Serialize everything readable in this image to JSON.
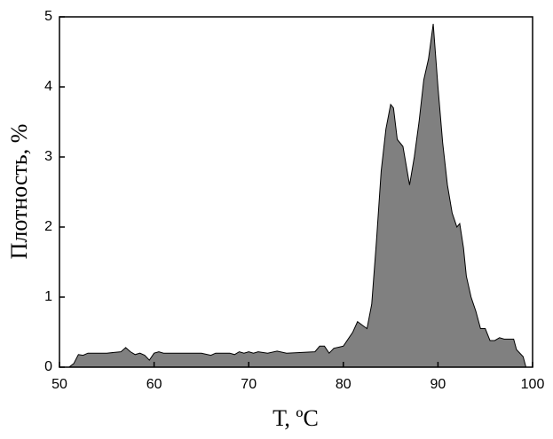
{
  "chart_data": {
    "type": "area",
    "x_label": "Т, ºС",
    "y_label": "Плотность, %",
    "x": [
      51,
      51.5,
      52,
      52.5,
      53,
      55,
      56.5,
      57,
      57.5,
      58,
      58.5,
      59,
      59.5,
      60,
      60.5,
      61,
      65,
      66,
      66.5,
      68,
      68.5,
      69,
      69.5,
      70,
      70.5,
      71,
      72,
      73,
      74,
      77,
      77.5,
      78,
      78.5,
      79,
      80,
      81,
      81.5,
      82,
      82.5,
      83,
      83.5,
      84,
      84.5,
      85,
      85.3,
      85.7,
      86.3,
      87,
      87.5,
      88,
      88.5,
      89,
      89.5,
      90,
      90.5,
      91,
      91.5,
      92,
      92.3,
      92.7,
      93,
      93.5,
      94,
      94.5,
      95,
      95.5,
      96,
      96.5,
      97,
      98,
      98.3,
      99,
      99.3
    ],
    "values": [
      0,
      0.05,
      0.18,
      0.17,
      0.2,
      0.2,
      0.22,
      0.28,
      0.22,
      0.18,
      0.2,
      0.17,
      0.1,
      0.2,
      0.22,
      0.2,
      0.2,
      0.17,
      0.2,
      0.2,
      0.18,
      0.22,
      0.2,
      0.22,
      0.2,
      0.22,
      0.2,
      0.23,
      0.2,
      0.22,
      0.3,
      0.3,
      0.2,
      0.27,
      0.3,
      0.5,
      0.65,
      0.6,
      0.55,
      0.9,
      1.8,
      2.8,
      3.4,
      3.75,
      3.7,
      3.25,
      3.15,
      2.6,
      3.0,
      3.5,
      4.1,
      4.4,
      4.9,
      4.0,
      3.2,
      2.6,
      2.2,
      2.0,
      2.05,
      1.7,
      1.3,
      1.0,
      0.8,
      0.55,
      0.55,
      0.38,
      0.38,
      0.42,
      0.4,
      0.4,
      0.25,
      0.15,
      0
    ],
    "color": "#808080",
    "xlim": [
      50,
      100
    ],
    "xticks": [
      50,
      60,
      70,
      80,
      90,
      100
    ],
    "ylim": [
      0,
      5
    ],
    "yticks": [
      0,
      1,
      2,
      3,
      4,
      5
    ]
  }
}
